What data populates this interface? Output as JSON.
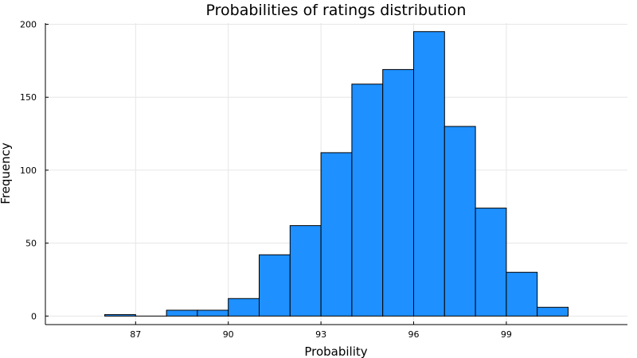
{
  "chart_data": {
    "type": "bar",
    "title": "Probabilities of ratings distribution",
    "xlabel": "Probability",
    "ylabel": "Frequency",
    "bin_width": 1,
    "bins": [
      {
        "start": 86,
        "end": 87,
        "value": 1
      },
      {
        "start": 87,
        "end": 88,
        "value": 0
      },
      {
        "start": 88,
        "end": 89,
        "value": 4
      },
      {
        "start": 89,
        "end": 90,
        "value": 4
      },
      {
        "start": 90,
        "end": 91,
        "value": 12
      },
      {
        "start": 91,
        "end": 92,
        "value": 42
      },
      {
        "start": 92,
        "end": 93,
        "value": 62
      },
      {
        "start": 93,
        "end": 94,
        "value": 112
      },
      {
        "start": 94,
        "end": 95,
        "value": 159
      },
      {
        "start": 95,
        "end": 96,
        "value": 169
      },
      {
        "start": 96,
        "end": 97,
        "value": 195
      },
      {
        "start": 97,
        "end": 98,
        "value": 130
      },
      {
        "start": 98,
        "end": 99,
        "value": 74
      },
      {
        "start": 99,
        "end": 100,
        "value": 30
      },
      {
        "start": 100,
        "end": 101,
        "value": 6
      }
    ],
    "xlim": [
      84.08,
      102.92
    ],
    "ylim": [
      -5.85,
      200.85
    ],
    "xticks": [
      87,
      90,
      93,
      96,
      99
    ],
    "yticks": [
      0,
      50,
      100,
      150,
      200
    ],
    "bar_color": "#1e90ff",
    "grid": true,
    "legend": false
  }
}
